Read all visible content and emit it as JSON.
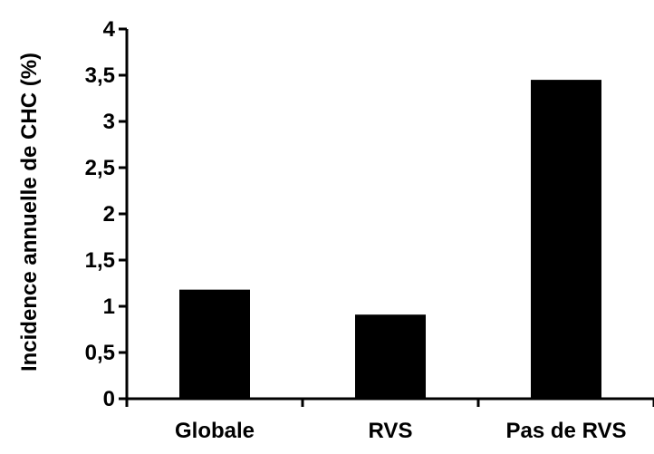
{
  "chart_data": {
    "type": "bar",
    "title": "",
    "xlabel": "",
    "ylabel": "Incidence annuelle de CHC (%)",
    "categories": [
      "Globale",
      "RVS",
      "Pas de RVS"
    ],
    "values": [
      1.18,
      0.91,
      3.45
    ],
    "ylim": [
      0,
      4
    ],
    "yticks": [
      0,
      0.5,
      1,
      1.5,
      2,
      2.5,
      3,
      3.5,
      4
    ],
    "ytick_labels": [
      "0",
      "0,5",
      "1",
      "1,5",
      "2",
      "2,5",
      "3",
      "3,5",
      "4"
    ],
    "grid": false,
    "legend": "none",
    "bar_color": "#000000",
    "axis_color": "#000000"
  }
}
